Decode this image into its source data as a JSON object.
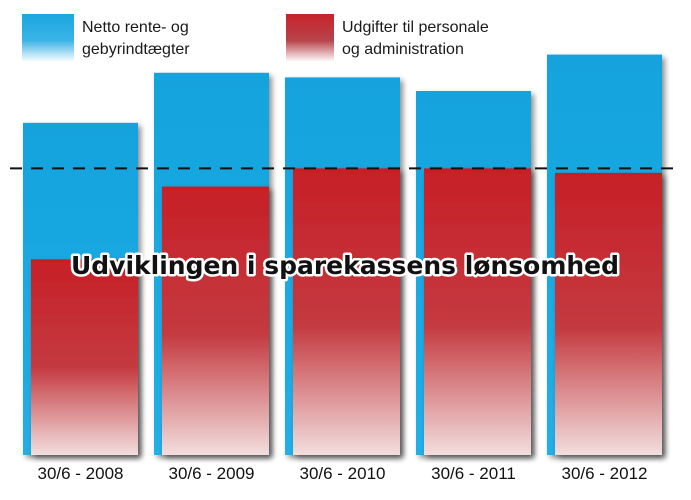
{
  "chart_data": {
    "type": "bar",
    "title": "Udviklingen i sparekassens lønsomhed",
    "categories": [
      "30/6 - 2008",
      "30/6 - 2009",
      "30/6 - 2010",
      "30/6 - 2011",
      "30/6 - 2012"
    ],
    "series": [
      {
        "name": "Netto rente- og gebyrindtægter",
        "color": "#1aa7e0",
        "values": [
          73,
          84,
          83,
          80,
          88
        ]
      },
      {
        "name": "Udgifter til personale og administration",
        "color": "#c8232b",
        "values": [
          43,
          59,
          63,
          63,
          62
        ]
      }
    ],
    "reference_line": {
      "value": 63,
      "style": "dashed"
    },
    "ylim": [
      0,
      100
    ],
    "legend": {
      "position": "top",
      "items": [
        {
          "line1": "Netto rente- og",
          "line2": "gebyrindtægter",
          "color": "#1aa7e0"
        },
        {
          "line1": "Udgifter til personale",
          "line2": "og administration",
          "color": "#c8232b"
        }
      ]
    },
    "xlabel": "",
    "ylabel": ""
  }
}
